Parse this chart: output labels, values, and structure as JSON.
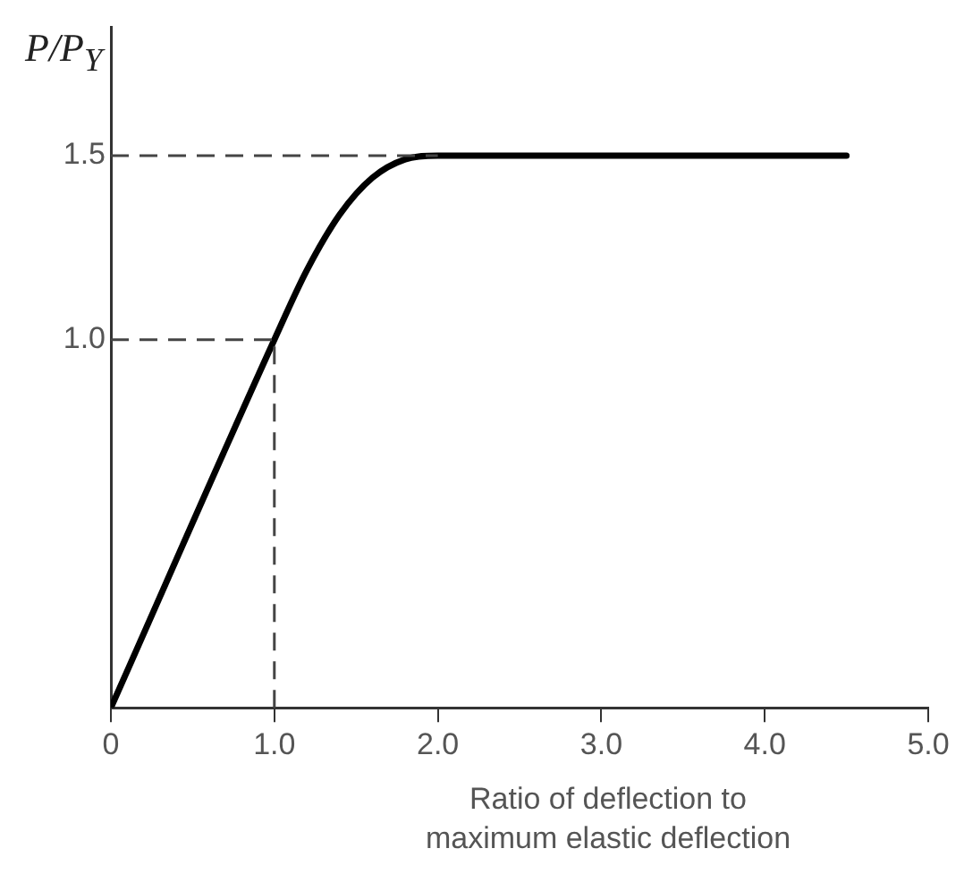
{
  "chart_data": {
    "type": "line",
    "ylabel": "P/P$_{Y}$",
    "xlabel": "Ratio of deflection to maximum elastic deflection",
    "x": [
      0,
      1,
      1.2,
      1.4,
      1.6,
      1.8,
      2,
      4.5
    ],
    "series": [
      {
        "color": "#000000",
        "values": [
          0,
          1,
          1.19,
          1.34,
          1.44,
          1.49,
          1.5,
          1.5
        ]
      }
    ],
    "xlim": [
      0,
      5
    ],
    "xticks": [
      0,
      {
        "value": 1,
        "label": "1.0"
      },
      {
        "value": 2,
        "label": "2.0"
      },
      {
        "value": 3,
        "label": "3.0"
      },
      {
        "value": 4,
        "label": "4.0"
      },
      {
        "value": 5,
        "label": "5.0"
      }
    ],
    "ylim": [
      0,
      1.85
    ],
    "yticks": [
      {
        "value": 1,
        "label": "1.0"
      },
      {
        "value": 1.5,
        "label": "1.5"
      }
    ],
    "ref_lines": [
      {
        "axis": "y",
        "value": 1.5,
        "color": "#444444",
        "line_style": "dashed"
      },
      {
        "axis": "y",
        "value": 1,
        "color": "#444444",
        "line_style": "dashed"
      },
      {
        "axis": "x",
        "value": 1,
        "color": "#444444",
        "line_style": "dashed"
      }
    ],
    "grid": false,
    "legend": false,
    "marker": "none",
    "line_style": "solid"
  }
}
